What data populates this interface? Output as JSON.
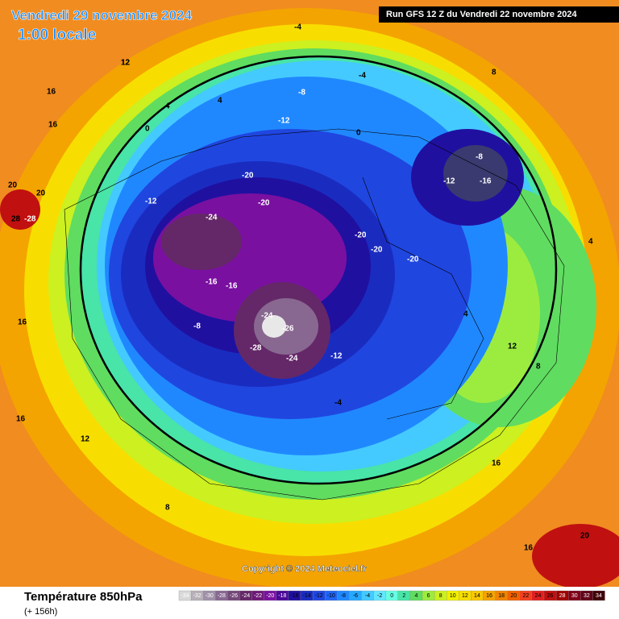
{
  "header": {
    "date": "Vendredi 29 novembre 2024",
    "time": "1:00 locale",
    "run": "Run GFS 12 Z du Vendredi 22 novembre 2024"
  },
  "footer": {
    "title": "Température 850hPa",
    "lead": "(+ 156h)",
    "copyright": "Copyright © 2024 Meteociel.fr"
  },
  "scale": {
    "values": [
      -34,
      -32,
      -30,
      -28,
      -26,
      -24,
      -22,
      -20,
      -18,
      -16,
      -14,
      -12,
      -10,
      -8,
      -6,
      -4,
      -2,
      0,
      2,
      4,
      6,
      8,
      10,
      12,
      14,
      16,
      18,
      20,
      22,
      24,
      26,
      28,
      30,
      32,
      34
    ],
    "colors": [
      "#d8d8d8",
      "#b8b0b8",
      "#a090a8",
      "#886890",
      "#744878",
      "#642868",
      "#6e1a78",
      "#7a10a0",
      "#4a0898",
      "#2010a0",
      "#1a2cc0",
      "#2046e0",
      "#2064f4",
      "#2088ff",
      "#28a8ff",
      "#44caff",
      "#64e6ff",
      "#66ffe2",
      "#48e4a8",
      "#60dc60",
      "#9cec40",
      "#ccf020",
      "#f0f000",
      "#f8de00",
      "#f8c800",
      "#f4a400",
      "#f08400",
      "#f06200",
      "#f04020",
      "#e02020",
      "#c01010",
      "#a00000",
      "#800018",
      "#600018",
      "#400008"
    ]
  },
  "map": {
    "labels": [
      "16",
      "12",
      "4",
      "0",
      "-4",
      "-8",
      "-12",
      "-16",
      "-20",
      "-24",
      "-28",
      "-20",
      "-24",
      "-20",
      "-20",
      "-20",
      "-12",
      "-12",
      "-16",
      "-8",
      "-8",
      "-4",
      "0",
      "4",
      "8",
      "12",
      "16",
      "20",
      "20",
      "28",
      "-28",
      "-26",
      "-24",
      "-16",
      "-12",
      "-4",
      "4",
      "12",
      "16",
      "16",
      "12",
      "8",
      "4",
      "8",
      "16",
      "16",
      "20"
    ]
  }
}
